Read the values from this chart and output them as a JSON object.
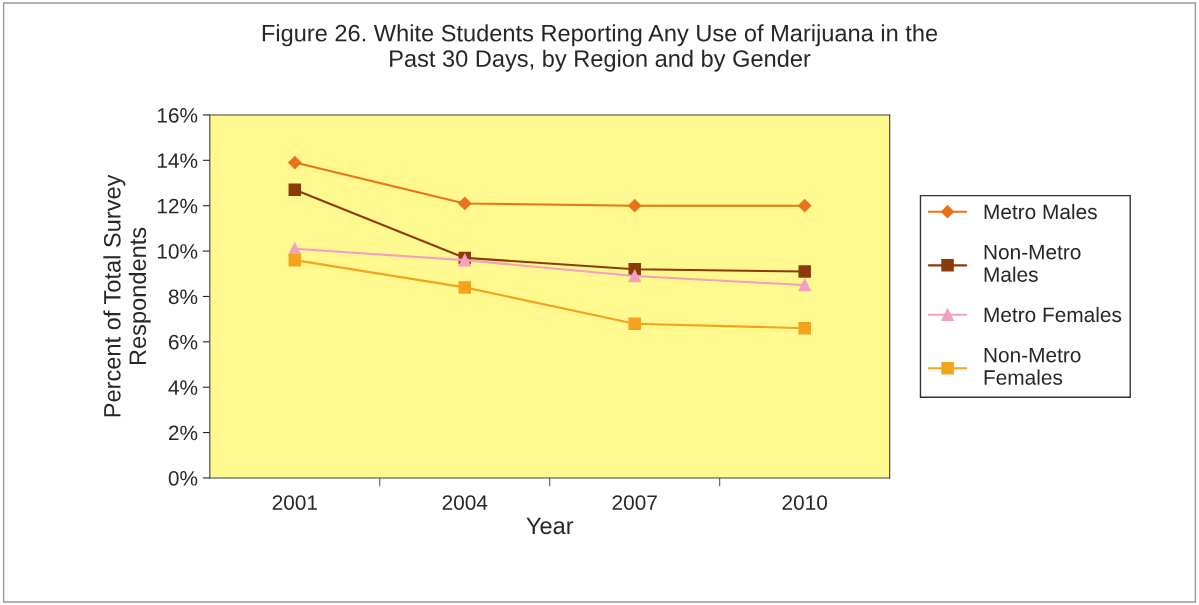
{
  "chart_data": {
    "type": "line",
    "title": "Figure 26. White Students Reporting Any Use of Marijuana in the\nPast 30 Days, by Region and by Gender",
    "xlabel": "Year",
    "ylabel": "Percent of Total Survey\nRespondents",
    "categories": [
      "2001",
      "2004",
      "2007",
      "2010"
    ],
    "ylim": [
      0,
      0.16
    ],
    "yticks": [
      {
        "value": 0,
        "label": "0%"
      },
      {
        "value": 0.02,
        "label": "2%"
      },
      {
        "value": 0.04,
        "label": "4%"
      },
      {
        "value": 0.06,
        "label": "6%"
      },
      {
        "value": 0.08,
        "label": "8%"
      },
      {
        "value": 0.1,
        "label": "10%"
      },
      {
        "value": 0.12,
        "label": "12%"
      },
      {
        "value": 0.14,
        "label": "14%"
      },
      {
        "value": 0.16,
        "label": "16%"
      }
    ],
    "grid": false,
    "legend": "right",
    "series": [
      {
        "name": "Metro Males",
        "color": "#e8731a",
        "marker": "diamond",
        "values": [
          0.139,
          0.121,
          0.12,
          0.12
        ]
      },
      {
        "name": "Non-Metro\nMales",
        "color": "#8b3a0a",
        "marker": "square",
        "values": [
          0.127,
          0.097,
          0.092,
          0.091
        ]
      },
      {
        "name": "Metro Females",
        "color": "#f4a0c0",
        "marker": "triangle",
        "values": [
          0.101,
          0.096,
          0.089,
          0.085
        ]
      },
      {
        "name": "Non-Metro\nFemales",
        "color": "#f5a21c",
        "marker": "square",
        "values": [
          0.096,
          0.084,
          0.068,
          0.066
        ]
      }
    ]
  }
}
